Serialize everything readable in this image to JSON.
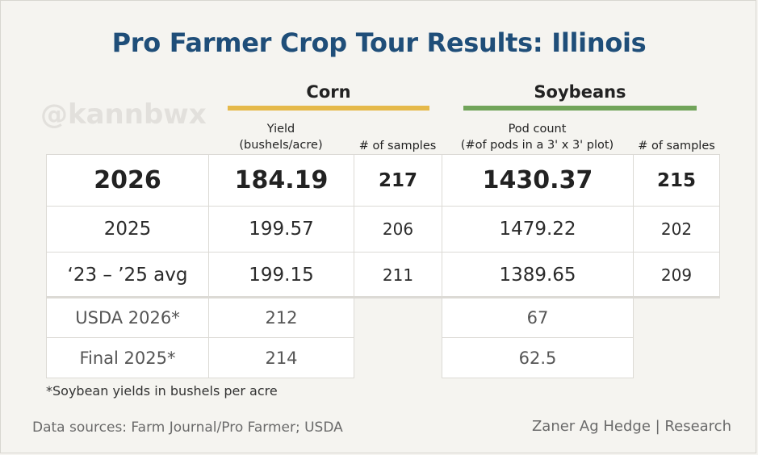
{
  "title": "Pro Farmer Crop Tour Results: Illinois",
  "watermark": "@kannbwx",
  "groups": {
    "corn": {
      "label": "Corn",
      "color": "#e5b94a"
    },
    "soybeans": {
      "label": "Soybeans",
      "color": "#71a45a"
    }
  },
  "columns": {
    "corn_yield": [
      "Yield",
      "(bushels/acre)"
    ],
    "corn_samples": "# of samples",
    "soy_pods": [
      "Pod count",
      "(#of pods in a 3' x 3' plot)"
    ],
    "soy_samples": "# of samples"
  },
  "rows": [
    {
      "label": "2026",
      "corn_yield": "184.19",
      "corn_samples": "217",
      "soy_pods": "1430.37",
      "soy_samples": "215"
    },
    {
      "label": "2025",
      "corn_yield": "199.57",
      "corn_samples": "206",
      "soy_pods": "1479.22",
      "soy_samples": "202"
    },
    {
      "label": "‘23 – ’25 avg",
      "corn_yield": "199.15",
      "corn_samples": "211",
      "soy_pods": "1389.65",
      "soy_samples": "209"
    }
  ],
  "usda_rows": [
    {
      "label": "USDA 2026*",
      "corn": "212",
      "soy": "67"
    },
    {
      "label": "Final 2025*",
      "corn": "214",
      "soy": "62.5"
    }
  ],
  "footnote": "*Soybean yields in bushels per acre",
  "source": "Data sources: Farm Journal/Pro Farmer; USDA",
  "credit": "Zaner Ag Hedge | Research"
}
